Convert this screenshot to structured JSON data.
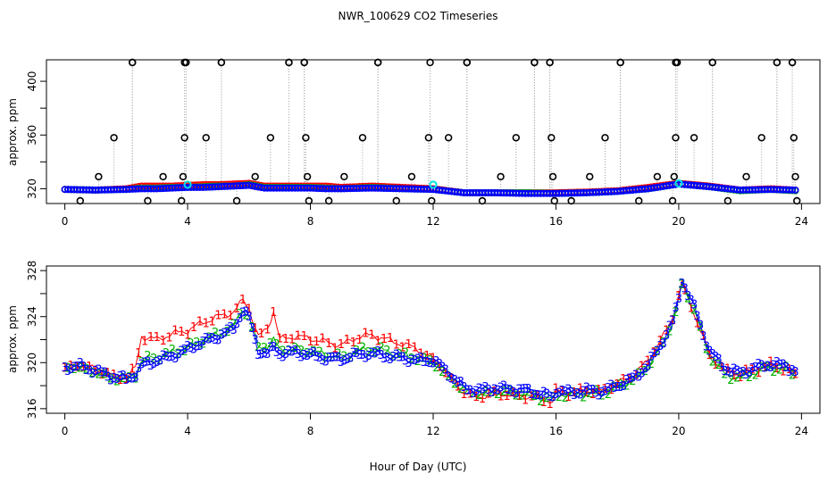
{
  "chart_data": [
    {
      "type": "scatter",
      "title": "NWR_100629  CO2 Timeseries",
      "xlabel": "",
      "ylabel": "approx. ppm",
      "xlim": [
        -0.6,
        24.6
      ],
      "ylim": [
        309,
        416
      ],
      "x_ticks": [
        0,
        4,
        8,
        12,
        16,
        20,
        24
      ],
      "y_tick_labels": [
        320,
        360,
        400
      ],
      "y_minor_ticks": [
        340,
        380
      ],
      "colors": {
        "red": "#ff0000",
        "green": "#00b000",
        "blue": "#0000ff",
        "cyan": "#00e5e5",
        "outlier": "#000000",
        "spike": "#a0a0a0"
      },
      "baseline_series": [
        {
          "name": "1",
          "color": "#ff0000",
          "x": [
            0,
            1,
            2,
            2.5,
            3,
            3.5,
            4,
            4.5,
            5,
            5.5,
            6,
            6.5,
            7,
            7.5,
            8,
            8.5,
            9,
            10,
            11,
            12,
            13,
            14,
            15,
            16,
            17,
            18,
            19,
            20,
            21,
            22,
            23,
            23.8
          ],
          "y": [
            319.5,
            319,
            320,
            322,
            322,
            322,
            322.5,
            323,
            323,
            323.5,
            324,
            322,
            322,
            322,
            322,
            322,
            321,
            322,
            321,
            320,
            317,
            317,
            317,
            317,
            317.5,
            318.5,
            321,
            324,
            322,
            319,
            320,
            319
          ]
        },
        {
          "name": "2",
          "color": "#00b000",
          "x": [
            0,
            1,
            2,
            2.5,
            3,
            3.5,
            4,
            4.5,
            5,
            5.5,
            6,
            6.5,
            7,
            7.5,
            8,
            8.5,
            9,
            10,
            11,
            12,
            13,
            14,
            15,
            16,
            17,
            18,
            19,
            20,
            21,
            22,
            23,
            23.8
          ],
          "y": [
            319.5,
            319,
            319.5,
            320.5,
            320.5,
            321,
            321,
            321.5,
            322,
            322,
            323,
            321,
            321,
            321,
            321,
            320.5,
            320,
            321,
            320,
            319.5,
            317,
            317,
            317,
            316.5,
            317,
            318,
            320,
            323.5,
            321.5,
            318.5,
            319.5,
            318.5
          ]
        },
        {
          "name": "3",
          "color": "#0000ff",
          "x": [
            0,
            1,
            2,
            2.5,
            3,
            3.5,
            4,
            4.5,
            5,
            5.5,
            6,
            6.5,
            7,
            7.5,
            8,
            8.5,
            9,
            10,
            11,
            12,
            13,
            14,
            15,
            16,
            17,
            18,
            19,
            20,
            21,
            22,
            23,
            23.8
          ],
          "y": [
            319.5,
            319,
            319.5,
            320,
            320,
            320.5,
            321,
            321,
            321.5,
            322,
            322.5,
            320.5,
            320.5,
            320.5,
            320.5,
            320,
            320,
            320.5,
            320,
            319.5,
            317,
            317,
            316.5,
            316.5,
            317,
            318,
            320,
            323.5,
            321.5,
            319,
            319.5,
            319
          ]
        }
      ],
      "spikes_top_x": [
        2.2,
        3.9,
        5.1,
        7.3,
        7.8,
        10.2,
        13.1,
        15.3,
        15.8,
        18.1,
        19.9,
        21.1,
        23.2,
        23.7
      ],
      "spike_top_value": 414,
      "outliers": [
        {
          "x": 0.5,
          "y": 311
        },
        {
          "x": 1.1,
          "y": 329
        },
        {
          "x": 1.6,
          "y": 358
        },
        {
          "x": 2.2,
          "y": 414
        },
        {
          "x": 2.7,
          "y": 311
        },
        {
          "x": 3.2,
          "y": 329
        },
        {
          "x": 3.8,
          "y": 311
        },
        {
          "x": 3.85,
          "y": 329
        },
        {
          "x": 3.9,
          "y": 358
        },
        {
          "x": 3.95,
          "y": 414
        },
        {
          "x": 4.6,
          "y": 358
        },
        {
          "x": 5.1,
          "y": 414
        },
        {
          "x": 5.6,
          "y": 311
        },
        {
          "x": 6.2,
          "y": 329
        },
        {
          "x": 6.7,
          "y": 358
        },
        {
          "x": 7.3,
          "y": 414
        },
        {
          "x": 7.8,
          "y": 414
        },
        {
          "x": 7.85,
          "y": 358
        },
        {
          "x": 7.9,
          "y": 329
        },
        {
          "x": 7.95,
          "y": 311
        },
        {
          "x": 8.6,
          "y": 311
        },
        {
          "x": 9.1,
          "y": 329
        },
        {
          "x": 9.7,
          "y": 358
        },
        {
          "x": 10.2,
          "y": 414
        },
        {
          "x": 10.8,
          "y": 311
        },
        {
          "x": 11.3,
          "y": 329
        },
        {
          "x": 11.85,
          "y": 358
        },
        {
          "x": 11.9,
          "y": 414
        },
        {
          "x": 11.95,
          "y": 311
        },
        {
          "x": 12.5,
          "y": 358
        },
        {
          "x": 13.1,
          "y": 414
        },
        {
          "x": 13.6,
          "y": 311
        },
        {
          "x": 14.2,
          "y": 329
        },
        {
          "x": 14.7,
          "y": 358
        },
        {
          "x": 15.3,
          "y": 414
        },
        {
          "x": 15.8,
          "y": 414
        },
        {
          "x": 15.85,
          "y": 358
        },
        {
          "x": 15.9,
          "y": 329
        },
        {
          "x": 15.95,
          "y": 311
        },
        {
          "x": 16.5,
          "y": 311
        },
        {
          "x": 17.1,
          "y": 329
        },
        {
          "x": 17.6,
          "y": 358
        },
        {
          "x": 18.1,
          "y": 414
        },
        {
          "x": 18.7,
          "y": 311
        },
        {
          "x": 19.3,
          "y": 329
        },
        {
          "x": 19.8,
          "y": 311
        },
        {
          "x": 19.85,
          "y": 329
        },
        {
          "x": 19.9,
          "y": 358
        },
        {
          "x": 19.95,
          "y": 414
        },
        {
          "x": 20.5,
          "y": 358
        },
        {
          "x": 21.1,
          "y": 414
        },
        {
          "x": 21.6,
          "y": 311
        },
        {
          "x": 22.2,
          "y": 329
        },
        {
          "x": 22.7,
          "y": 358
        },
        {
          "x": 23.2,
          "y": 414
        },
        {
          "x": 23.7,
          "y": 414
        },
        {
          "x": 23.75,
          "y": 358
        },
        {
          "x": 23.8,
          "y": 329
        },
        {
          "x": 23.85,
          "y": 311
        }
      ],
      "cyan_points": [
        {
          "x": 4.0,
          "y": 323
        },
        {
          "x": 12.0,
          "y": 323
        },
        {
          "x": 20.0,
          "y": 324
        }
      ]
    },
    {
      "type": "scatter",
      "title": "",
      "xlabel": "Hour of Day (UTC)",
      "ylabel": "approx. ppm",
      "xlim": [
        -0.6,
        24.6
      ],
      "ylim": [
        315.6,
        328.4
      ],
      "x_ticks": [
        0,
        4,
        8,
        12,
        16,
        20,
        24
      ],
      "y_tick_labels": [
        316,
        320,
        324,
        328
      ],
      "y_minor_ticks": [
        318,
        322,
        326
      ],
      "series": [
        {
          "name": "1",
          "color": "#ff0000",
          "x": [
            0,
            0.5,
            1,
            1.5,
            2,
            2.3,
            2.5,
            3,
            3.5,
            4,
            4.5,
            5,
            5.5,
            5.8,
            6,
            6.3,
            6.6,
            6.8,
            7,
            7.5,
            8,
            8.5,
            9,
            9.5,
            10,
            10.5,
            11,
            11.5,
            12,
            12.5,
            13,
            13.5,
            14,
            14.5,
            15,
            15.5,
            15.9,
            16,
            16.5,
            17,
            17.5,
            18,
            18.5,
            19,
            19.5,
            19.8,
            20,
            20.1,
            20.2,
            20.5,
            21,
            21.5,
            22,
            22.5,
            23,
            23.5,
            23.8
          ],
          "y": [
            319.6,
            319.8,
            319.4,
            318.9,
            318.7,
            319.5,
            322.3,
            322.0,
            322.5,
            322.8,
            323.5,
            324.0,
            324.4,
            325.4,
            324.8,
            322.2,
            323.0,
            324.5,
            322.0,
            322.3,
            322.1,
            321.8,
            321.5,
            322.2,
            322.4,
            322.0,
            321.6,
            321.2,
            320.3,
            318.9,
            317.4,
            317.0,
            317.4,
            317.2,
            317.1,
            316.9,
            316.6,
            317.5,
            317.4,
            317.6,
            317.5,
            318.2,
            318.8,
            320.2,
            322.3,
            323.9,
            325.8,
            327.0,
            326.2,
            324.3,
            320.7,
            319.3,
            319.0,
            319.4,
            319.8,
            319.5,
            318.9
          ]
        },
        {
          "name": "2",
          "color": "#00b000",
          "x": [
            0,
            0.5,
            1,
            1.5,
            2,
            2.3,
            2.5,
            3,
            3.5,
            4,
            4.5,
            5,
            5.5,
            5.8,
            6,
            6.3,
            6.6,
            6.8,
            7,
            7.5,
            8,
            8.5,
            9,
            9.5,
            10,
            10.5,
            11,
            11.5,
            12,
            12.5,
            13,
            13.5,
            14,
            14.5,
            15,
            15.5,
            15.9,
            16,
            16.5,
            17,
            17.5,
            18,
            18.5,
            19,
            19.5,
            19.8,
            20,
            20.1,
            20.2,
            20.5,
            21,
            21.5,
            22,
            22.5,
            23,
            23.5,
            23.8
          ],
          "y": [
            319.5,
            319.6,
            319.2,
            318.7,
            318.5,
            318.9,
            320.2,
            320.5,
            320.9,
            321.3,
            322.0,
            322.5,
            323.2,
            324.7,
            324.0,
            321.3,
            321.5,
            322.0,
            321.1,
            321.2,
            321.0,
            320.7,
            320.5,
            321.0,
            321.2,
            321.0,
            320.7,
            320.4,
            320.1,
            318.7,
            317.6,
            317.3,
            317.5,
            317.4,
            317.3,
            317.0,
            316.8,
            317.3,
            317.2,
            317.4,
            317.3,
            317.9,
            318.5,
            319.6,
            321.8,
            323.4,
            325.3,
            326.8,
            326.4,
            324.6,
            320.6,
            319.0,
            318.6,
            319.2,
            319.6,
            319.4,
            318.9
          ]
        },
        {
          "name": "3",
          "color": "#0000ff",
          "x": [
            0,
            0.5,
            1,
            1.5,
            2,
            2.3,
            2.5,
            3,
            3.5,
            4,
            4.5,
            5,
            5.5,
            5.8,
            6,
            6.3,
            6.6,
            6.8,
            7,
            7.5,
            8,
            8.5,
            9,
            9.5,
            10,
            10.5,
            11,
            11.5,
            12,
            12.5,
            13,
            13.5,
            14,
            14.5,
            15,
            15.5,
            15.9,
            16,
            16.5,
            17,
            17.5,
            18,
            18.5,
            19,
            19.5,
            19.8,
            20,
            20.1,
            20.2,
            20.5,
            21,
            21.5,
            22,
            22.5,
            23,
            23.5,
            23.8
          ],
          "y": [
            319.6,
            319.7,
            319.3,
            318.8,
            318.6,
            319.0,
            319.8,
            320.2,
            320.6,
            321.2,
            321.8,
            322.3,
            323.0,
            324.6,
            323.9,
            321.0,
            320.8,
            321.3,
            320.8,
            320.9,
            320.7,
            320.4,
            320.3,
            320.7,
            320.8,
            320.6,
            320.4,
            320.2,
            320.2,
            319.1,
            317.8,
            317.6,
            317.8,
            317.7,
            317.6,
            317.3,
            317.0,
            317.6,
            317.4,
            317.6,
            317.5,
            318.0,
            318.6,
            319.8,
            322.0,
            323.6,
            325.6,
            327.2,
            326.6,
            324.8,
            321.0,
            319.5,
            319.1,
            319.6,
            319.9,
            319.7,
            319.3
          ]
        }
      ]
    }
  ]
}
